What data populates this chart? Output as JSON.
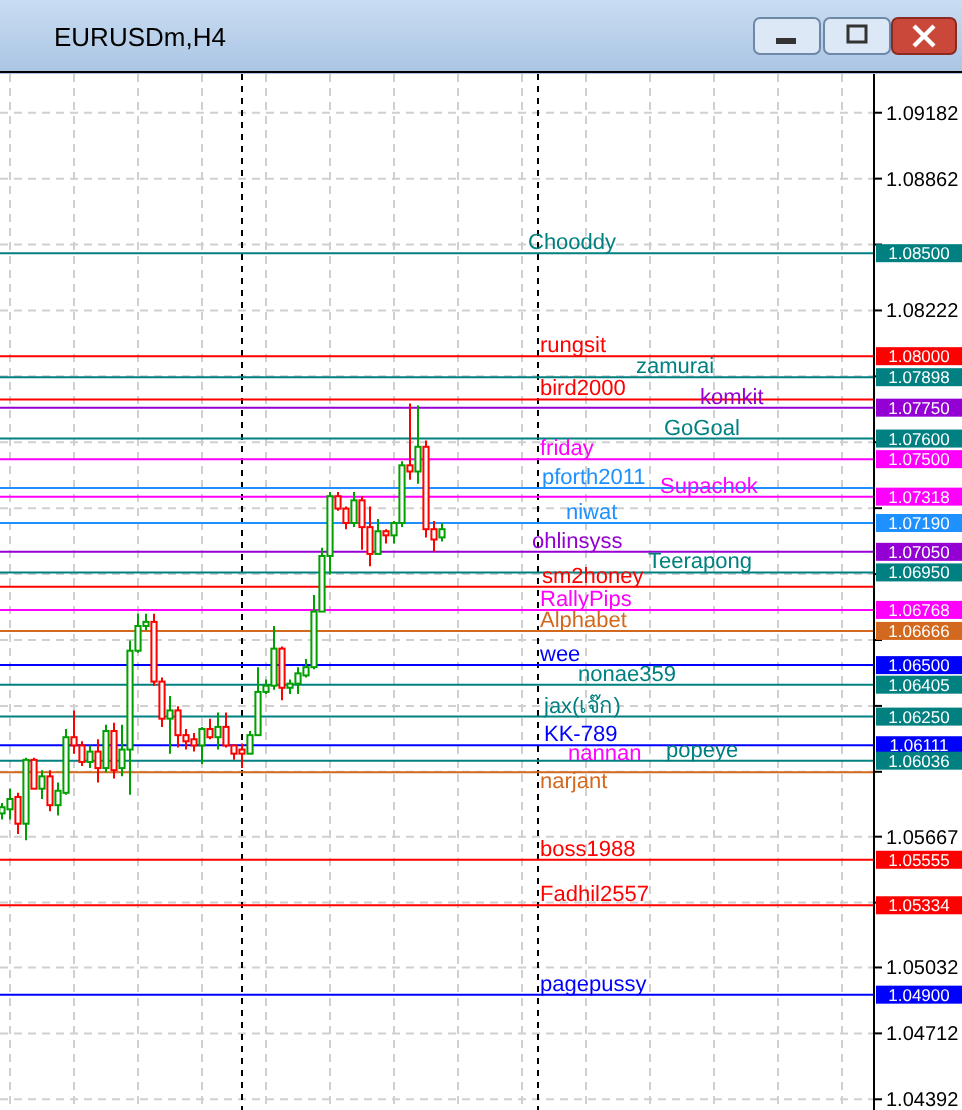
{
  "chart_data": {
    "type": "candlestick",
    "title": "EURUSDm,H4",
    "categories": [
      null,
      null,
      null,
      null,
      null,
      null,
      null,
      null,
      null,
      null,
      null,
      null,
      null,
      null,
      null,
      null,
      null,
      null,
      null,
      null,
      null,
      null,
      null,
      null,
      null,
      null,
      null,
      null,
      null,
      null,
      null,
      null,
      null,
      null,
      null,
      null,
      null,
      null,
      null,
      null,
      null,
      null,
      null,
      null,
      null,
      null,
      null,
      null,
      null,
      null,
      null,
      null,
      null,
      null,
      null,
      null,
      null,
      null,
      null,
      null,
      null,
      null,
      null,
      null,
      null,
      null,
      null,
      null,
      null,
      null,
      null,
      null,
      null,
      null,
      null,
      null,
      null,
      null,
      null,
      null,
      null,
      null,
      null,
      null,
      null,
      null,
      null,
      null,
      null,
      null,
      null,
      null,
      null,
      null,
      null,
      null,
      null,
      null,
      null,
      null,
      null,
      null,
      null,
      null,
      null,
      null,
      null,
      null,
      null,
      null
    ],
    "ohlc": [
      [
        1.0578,
        1.0583,
        1.0575,
        1.0581
      ],
      [
        1.058,
        1.059,
        1.0575,
        1.0585
      ],
      [
        1.0586,
        1.0588,
        1.0568,
        1.0573
      ],
      [
        1.0573,
        1.0605,
        1.0565,
        1.0604
      ],
      [
        1.0604,
        1.0605,
        1.059,
        1.059
      ],
      [
        1.059,
        1.0599,
        1.0585,
        1.0596
      ],
      [
        1.0596,
        1.0599,
        1.0579,
        1.0582
      ],
      [
        1.0582,
        1.0593,
        1.0577,
        1.0589
      ],
      [
        1.0588,
        1.0619,
        1.0587,
        1.0615
      ],
      [
        1.0615,
        1.0628,
        1.0607,
        1.0611
      ],
      [
        1.0611,
        1.0613,
        1.0601,
        1.0603
      ],
      [
        1.0603,
        1.0611,
        1.06,
        1.0608
      ],
      [
        1.0608,
        1.0614,
        1.0593,
        1.06
      ],
      [
        1.06,
        1.0621,
        1.0598,
        1.0618
      ],
      [
        1.0618,
        1.0622,
        1.0595,
        1.0599
      ],
      [
        1.06,
        1.0621,
        1.0596,
        1.0609
      ],
      [
        1.0609,
        1.0662,
        1.0587,
        1.0657
      ],
      [
        1.0657,
        1.0675,
        1.0656,
        1.0669
      ],
      [
        1.0669,
        1.0675,
        1.0667,
        1.0671
      ],
      [
        1.0671,
        1.0675,
        1.064,
        1.0642
      ],
      [
        1.0642,
        1.0644,
        1.062,
        1.0624
      ],
      [
        1.0624,
        1.0635,
        1.0607,
        1.0628
      ],
      [
        1.0628,
        1.063,
        1.061,
        1.0616
      ],
      [
        1.0616,
        1.0619,
        1.0609,
        1.0613
      ],
      [
        1.0614,
        1.0617,
        1.0608,
        1.0611
      ],
      [
        1.0611,
        1.062,
        1.0602,
        1.0619
      ],
      [
        1.0619,
        1.0624,
        1.0614,
        1.0615
      ],
      [
        1.0615,
        1.0627,
        1.0609,
        1.062
      ],
      [
        1.062,
        1.0627,
        1.061,
        1.0611
      ],
      [
        1.0611,
        1.0611,
        1.0604,
        1.0607
      ],
      [
        1.0609,
        1.0612,
        1.06,
        1.0607
      ],
      [
        1.0607,
        1.0618,
        1.0607,
        1.0616
      ],
      [
        1.0616,
        1.0649,
        1.0616,
        1.0637
      ],
      [
        1.0637,
        1.0643,
        1.0636,
        1.064
      ],
      [
        1.064,
        1.0669,
        1.0638,
        1.0658
      ],
      [
        1.0658,
        1.0659,
        1.0633,
        1.0639
      ],
      [
        1.0639,
        1.0643,
        1.0636,
        1.0641
      ],
      [
        1.0641,
        1.0649,
        1.0636,
        1.0646
      ],
      [
        1.0645,
        1.0653,
        1.0644,
        1.0649
      ],
      [
        1.0649,
        1.0684,
        1.0648,
        1.0676
      ],
      [
        1.0676,
        1.0707,
        1.0676,
        1.0703
      ],
      [
        1.0703,
        1.0734,
        1.0694,
        1.0732
      ],
      [
        1.0732,
        1.0734,
        1.0725,
        1.0726
      ],
      [
        1.0726,
        1.0727,
        1.0716,
        1.0719
      ],
      [
        1.0719,
        1.0734,
        1.0717,
        1.073
      ],
      [
        1.073,
        1.0732,
        1.0706,
        1.0717
      ],
      [
        1.0717,
        1.0727,
        1.0698,
        1.0704
      ],
      [
        1.0704,
        1.0721,
        1.0704,
        1.0715
      ],
      [
        1.0715,
        1.0716,
        1.0709,
        1.0713
      ],
      [
        1.0713,
        1.072,
        1.0709,
        1.0719
      ],
      [
        1.0719,
        1.0749,
        1.0717,
        1.0747
      ],
      [
        1.0747,
        1.0777,
        1.074,
        1.0744
      ],
      [
        1.0744,
        1.0776,
        1.0738,
        1.0756
      ],
      [
        1.0756,
        1.0759,
        1.0712,
        1.0716
      ],
      [
        1.0716,
        1.072,
        1.0705,
        1.0711
      ],
      [
        1.0712,
        1.0719,
        1.071,
        1.0716
      ],
      null,
      null,
      null,
      null,
      null,
      null,
      null,
      null,
      null,
      null,
      null,
      null,
      null,
      null,
      null,
      null,
      null,
      null,
      null,
      null,
      null,
      null,
      null,
      null,
      null,
      null,
      null,
      null,
      null,
      null,
      null,
      null,
      null,
      null,
      null,
      null,
      null,
      null,
      null,
      null,
      null,
      null,
      null,
      null,
      null,
      null,
      null,
      null,
      null,
      null,
      null,
      null,
      null,
      null
    ],
    "colors": [
      "#00a000",
      "#00a000",
      "#ff0000",
      "#00a000",
      "#ff0000",
      "#00a000",
      "#ff0000",
      "#00a000",
      "#00a000",
      "#ff0000",
      "#ff0000",
      "#00a000",
      "#ff0000",
      "#00a000",
      "#ff0000",
      "#00a000",
      "#00a000",
      "#00a000",
      "#00a000",
      "#ff0000",
      "#ff0000",
      "#00a000",
      "#ff0000",
      "#ff0000",
      "#ff0000",
      "#00a000",
      "#ff0000",
      "#00a000",
      "#ff0000",
      "#ff0000",
      "#ff0000",
      "#00a000",
      "#00a000",
      "#00a000",
      "#00a000",
      "#ff0000",
      "#00a000",
      "#00a000",
      "#00a000",
      "#00a000",
      "#00a000",
      "#00a000",
      "#ff0000",
      "#ff0000",
      "#00a000",
      "#ff0000",
      "#ff0000",
      "#00a000",
      "#ff0000",
      "#00a000",
      "#00a000",
      "#ff0000",
      "#00a000",
      "#ff0000",
      "#ff0000",
      "#00a000",
      null,
      null,
      null,
      null,
      null,
      null,
      null,
      null,
      null,
      null,
      null,
      null,
      null,
      null,
      null,
      null,
      null,
      null,
      null,
      null,
      null,
      null,
      null,
      null,
      null,
      null,
      null,
      null,
      null,
      null,
      null,
      null,
      null,
      null,
      null,
      null,
      null,
      null,
      null,
      null,
      null,
      null,
      null,
      null,
      null,
      null,
      null,
      null,
      null,
      null,
      null,
      null,
      null,
      null
    ],
    "ylim": [
      1.0434,
      1.0937
    ],
    "yticks": [
      1.09182,
      1.08862,
      {
        "value": 1.08542,
        "label": null
      },
      1.08222,
      {
        "value": 1.07902,
        "label": null
      },
      {
        "value": 1.07582,
        "label": null
      },
      {
        "value": 1.07262,
        "label": null
      },
      {
        "value": 1.06942,
        "label": null
      },
      {
        "value": 1.06622,
        "label": null
      },
      {
        "value": 1.06302,
        "label": null
      },
      {
        "value": 1.05982,
        "label": null
      },
      1.05667,
      {
        "value": 1.05347,
        "label": null
      },
      1.05032,
      1.04712,
      1.04392
    ],
    "grid": true,
    "ref_lines": [
      {
        "axis": "y",
        "value": 1.085,
        "label": "Chooddy",
        "color": "#008080"
      },
      {
        "axis": "y",
        "value": 1.08,
        "label": "rungsit",
        "color": "#ff0000"
      },
      {
        "axis": "y",
        "value": 1.07898,
        "label": "zamurai",
        "color": "#008080"
      },
      {
        "axis": "y",
        "value": 1.0779,
        "label": "bird2000",
        "color": "#ff0000"
      },
      {
        "axis": "y",
        "value": 1.0775,
        "label": "komkit",
        "color": "#9400d3"
      },
      {
        "axis": "y",
        "value": 1.076,
        "label": "GoGoal",
        "color": "#008080"
      },
      {
        "axis": "y",
        "value": 1.075,
        "label": "friday",
        "color": "#ff00ff"
      },
      {
        "axis": "y",
        "value": 1.0736,
        "label": "pforth2011",
        "color": "#1e90ff"
      },
      {
        "axis": "y",
        "value": 1.07318,
        "label": "Supachok",
        "color": "#ff00ff"
      },
      {
        "axis": "y",
        "value": 1.0719,
        "label": "niwat",
        "color": "#1e90ff"
      },
      {
        "axis": "y",
        "value": 1.0705,
        "label": "ohlinsyss",
        "color": "#9400d3"
      },
      {
        "axis": "y",
        "value": 1.0695,
        "label": "Teerapong",
        "color": "#008080"
      },
      {
        "axis": "y",
        "value": 1.0688,
        "label": "sm2honey",
        "color": "#ff0000"
      },
      {
        "axis": "y",
        "value": 1.06768,
        "label": "RallyPips",
        "color": "#ff00ff"
      },
      {
        "axis": "y",
        "value": 1.06666,
        "label": "Alphabet",
        "color": "#d2691e"
      },
      {
        "axis": "y",
        "value": 1.065,
        "label": "wee",
        "color": "#0000ff"
      },
      {
        "axis": "y",
        "value": 1.06405,
        "label": "nonae359",
        "color": "#008080"
      },
      {
        "axis": "y",
        "value": 1.0625,
        "label": "jax(เจ๊ก)",
        "color": "#008080"
      },
      {
        "axis": "y",
        "value": 1.06111,
        "label": "KK-789",
        "color": "#0000ff"
      },
      {
        "axis": "y",
        "value": 1.06036,
        "label": "popeye",
        "color": "#008080"
      },
      {
        "axis": "y",
        "value": 1.0598,
        "label": "narjant",
        "color": "#d2691e"
      },
      {
        "axis": "y",
        "value": 1.05555,
        "label": "boss1988",
        "color": "#ff0000"
      },
      {
        "axis": "y",
        "value": 1.05334,
        "label": "Fadhil2557",
        "color": "#ff0000"
      },
      {
        "axis": "y",
        "value": 1.049,
        "label": "pagepussy",
        "color": "#0000ff"
      }
    ],
    "annotations": [
      "nannan",
      "1.08500",
      "1.08000",
      "1.07898",
      "1.07750",
      "1.07600",
      "1.07500",
      "1.07318",
      "1.07190",
      "1.07050",
      "1.06950",
      "1.06768",
      "1.06666",
      "1.06500",
      "1.06405",
      "1.06250",
      "1.06111",
      "1.06036",
      "1.05555",
      "1.05334",
      "1.04900"
    ]
  }
}
